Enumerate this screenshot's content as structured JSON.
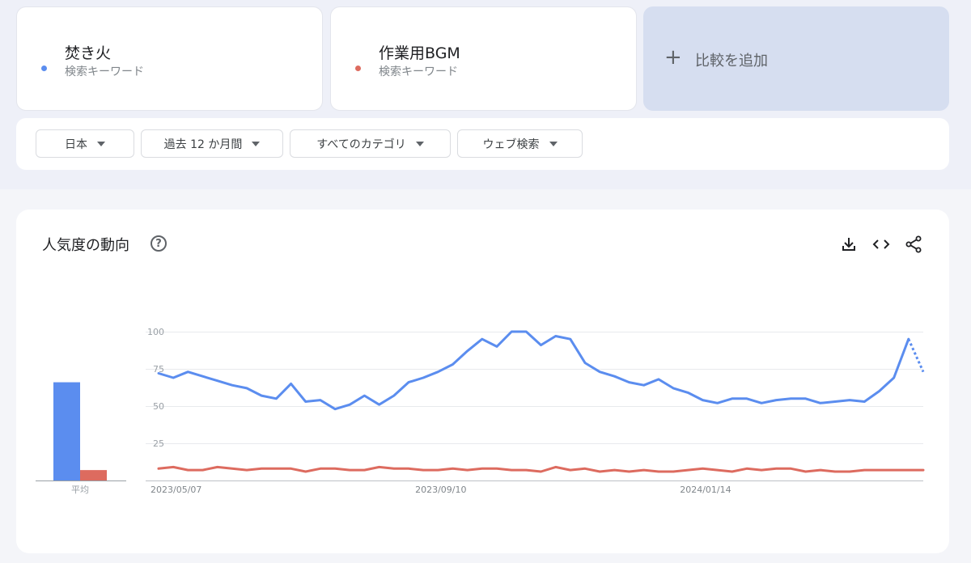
{
  "keywords": [
    {
      "term": "焚き火",
      "subtitle": "検索キーワード",
      "color": "#5b8def"
    },
    {
      "term": "作業用BGM",
      "subtitle": "検索キーワード",
      "color": "#dd6b5f"
    }
  ],
  "add_compare": {
    "icon": "plus-icon",
    "label": "比較を追加"
  },
  "filters": [
    {
      "label": "日本"
    },
    {
      "label": "過去 12 か月間"
    },
    {
      "label": "すべてのカテゴリ"
    },
    {
      "label": "ウェブ検索"
    }
  ],
  "chart_section": {
    "title": "人気度の動向",
    "help_icon": "?",
    "tools": [
      "download-icon",
      "embed-code-icon",
      "share-icon"
    ],
    "average_label": "平均"
  },
  "chart_data": {
    "type": "line",
    "ylim": [
      0,
      100
    ],
    "yticks": [
      25,
      50,
      75,
      100
    ],
    "x_tick_labels": [
      "2023/05/07",
      "2023/09/10",
      "2024/01/14"
    ],
    "x_tick_indices": [
      0,
      18,
      36
    ],
    "series": [
      {
        "name": "焚き火",
        "color": "#5b8def",
        "values": [
          72,
          69,
          73,
          70,
          67,
          64,
          62,
          57,
          55,
          65,
          53,
          54,
          48,
          51,
          57,
          51,
          57,
          66,
          69,
          73,
          78,
          87,
          95,
          90,
          100,
          100,
          91,
          97,
          95,
          79,
          73,
          70,
          66,
          64,
          68,
          62,
          59,
          54,
          52,
          55,
          55,
          52,
          54,
          55,
          55,
          52,
          53,
          54,
          53,
          60,
          69,
          95,
          73
        ],
        "dashed_last_segment": true
      },
      {
        "name": "作業用BGM",
        "color": "#dd6b5f",
        "values": [
          8,
          9,
          7,
          7,
          9,
          8,
          7,
          8,
          8,
          8,
          6,
          8,
          8,
          7,
          7,
          9,
          8,
          8,
          7,
          7,
          8,
          7,
          8,
          8,
          7,
          7,
          6,
          9,
          7,
          8,
          6,
          7,
          6,
          7,
          6,
          6,
          7,
          8,
          7,
          6,
          8,
          7,
          8,
          8,
          6,
          7,
          6,
          6,
          7,
          7,
          7,
          7,
          7
        ]
      }
    ],
    "averages": [
      {
        "name": "焚き火",
        "value": 66,
        "color": "#5b8def"
      },
      {
        "name": "作業用BGM",
        "value": 7,
        "color": "#dd6b5f"
      }
    ]
  }
}
